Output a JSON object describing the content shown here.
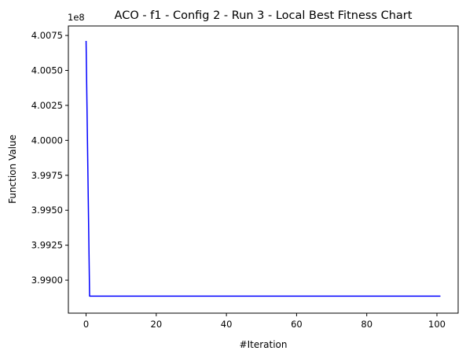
{
  "chart_data": {
    "type": "line",
    "title": "ACO - f1 - Config 2 - Run 3 - Local Best Fitness Chart",
    "xlabel": "#Iteration",
    "ylabel": "Function Value",
    "y_offset_label": "1e8",
    "xlim": [
      -5.05,
      106.05
    ],
    "ylim": [
      3.98764,
      4.00818
    ],
    "x_ticks": [
      0,
      20,
      40,
      60,
      80,
      100
    ],
    "x_tick_labels": [
      "0",
      "20",
      "40",
      "60",
      "80",
      "100"
    ],
    "y_ticks": [
      3.99,
      3.9925,
      3.995,
      3.9975,
      4.0,
      4.0025,
      4.005,
      4.0075
    ],
    "y_tick_labels": [
      "3.9900",
      "3.9925",
      "3.9950",
      "3.9975",
      "4.0000",
      "4.0025",
      "4.0050",
      "4.0075"
    ],
    "grid": false,
    "series": [
      {
        "color": "#0000ff",
        "x": [
          0,
          1,
          101
        ],
        "y": [
          4.00711,
          3.98886,
          3.98886
        ]
      }
    ]
  }
}
